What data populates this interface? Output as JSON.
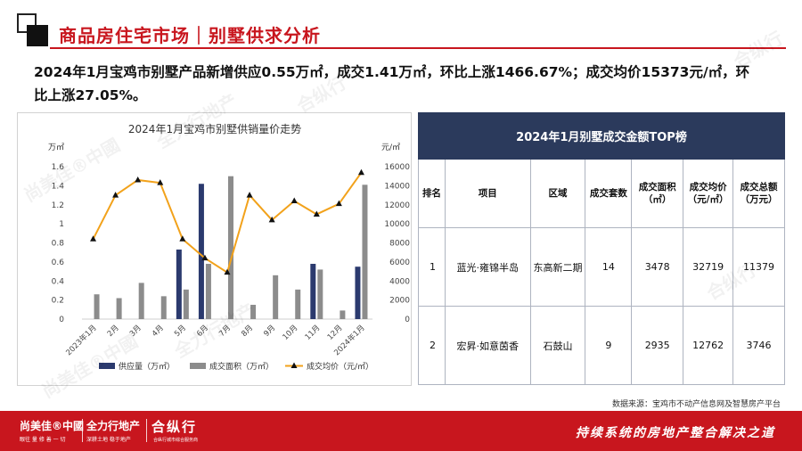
{
  "header": {
    "title": "商品房住宅市场｜别墅供求分析"
  },
  "headline": {
    "line1": "2024年1月宝鸡市别墅产品新增供应0.55万㎡，成交1.41万㎡，环比上涨1466.67%；成交均价15373元/㎡，环",
    "line2": "比上涨27.05%。"
  },
  "chart_data": {
    "type": "bar",
    "title": "2024年1月宝鸡市别墅供销量价走势",
    "y_left_unit": "万㎡",
    "y_right_unit": "元/㎡",
    "y_left_range": [
      0,
      1.6
    ],
    "y_left_ticks": [
      "0",
      "0.2",
      "0.4",
      "0.6",
      "0.8",
      "1",
      "1.2",
      "1.4",
      "1.6"
    ],
    "y_right_range": [
      0,
      16000
    ],
    "y_right_ticks": [
      "0",
      "2000",
      "4000",
      "6000",
      "8000",
      "10000",
      "12000",
      "14000",
      "16000"
    ],
    "categories": [
      "2023年1月",
      "2月",
      "3月",
      "4月",
      "5月",
      "6月",
      "7月",
      "8月",
      "9月",
      "10月",
      "11月",
      "12月",
      "2024年1月"
    ],
    "series": [
      {
        "name": "供应量（万㎡）",
        "kind": "bar",
        "axis": "left",
        "color": "#2b3a6e",
        "values": [
          0,
          0,
          0,
          0,
          0.73,
          1.42,
          0,
          0,
          0,
          0,
          0.58,
          0,
          0.55
        ]
      },
      {
        "name": "成交面积（万㎡）",
        "kind": "bar",
        "axis": "left",
        "color": "#8c8c8c",
        "values": [
          0.26,
          0.22,
          0.38,
          0.24,
          0.31,
          0.58,
          1.5,
          0.15,
          0.46,
          0.31,
          0.52,
          0.09,
          1.41
        ]
      },
      {
        "name": "成交均价（元/㎡）",
        "kind": "line",
        "axis": "right",
        "color": "#f2a21b",
        "values": [
          8400,
          13000,
          14600,
          14300,
          8400,
          6400,
          4900,
          13000,
          10400,
          12400,
          11000,
          12100,
          15373
        ]
      }
    ],
    "legend_position": "bottom",
    "grid": false
  },
  "table": {
    "caption": "2024年1月别墅成交金额TOP榜",
    "headers": {
      "rank": "排名",
      "project": "项目",
      "area": "区域",
      "units": "成交套数",
      "deal_area": "成交面积（㎡）",
      "avg_price": "成交均价（元/㎡）",
      "total": "成交总额（万元）"
    },
    "rows": [
      {
        "rank": "1",
        "project": "蓝光·雍锦半岛",
        "area": "东高新二期",
        "units": "14",
        "deal_area": "3478",
        "avg_price": "32719",
        "total": "11379"
      },
      {
        "rank": "2",
        "project": "宏昇·如意茵香",
        "area": "石鼓山",
        "units": "9",
        "deal_area": "2935",
        "avg_price": "12762",
        "total": "3746"
      }
    ]
  },
  "source": "数据来源：宝鸡市不动产信息网及智慧房产平台",
  "footer": {
    "brand1": "尚美佳®中國",
    "brand1_sub": "眼往 量 修 善 一 切",
    "brand2": "全力行地产",
    "brand2_sub": "深耕土地 稳于地产",
    "brand3": "合纵行",
    "brand3_sub": "合纵行城市综合服务商",
    "slogan": "持续系统的房地产整合解决之道"
  },
  "colors": {
    "accent_red": "#c8161e",
    "table_header": "#2b3a5c"
  }
}
